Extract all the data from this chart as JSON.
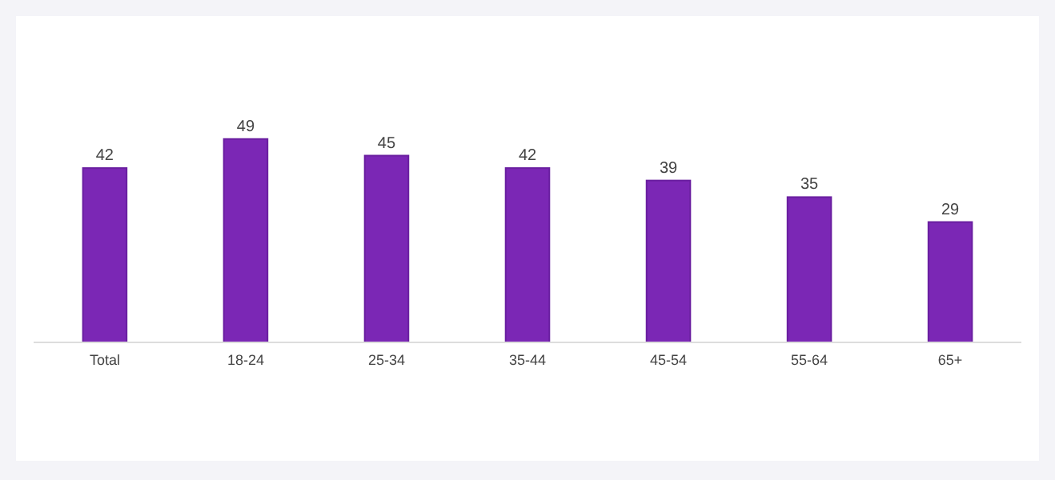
{
  "chart_data": {
    "type": "bar",
    "categories": [
      "Total",
      "18-24",
      "25-34",
      "35-44",
      "45-54",
      "55-64",
      "65+"
    ],
    "values": [
      42,
      49,
      45,
      42,
      39,
      35,
      29
    ],
    "color": "#7b27b5",
    "data_labels": true
  }
}
